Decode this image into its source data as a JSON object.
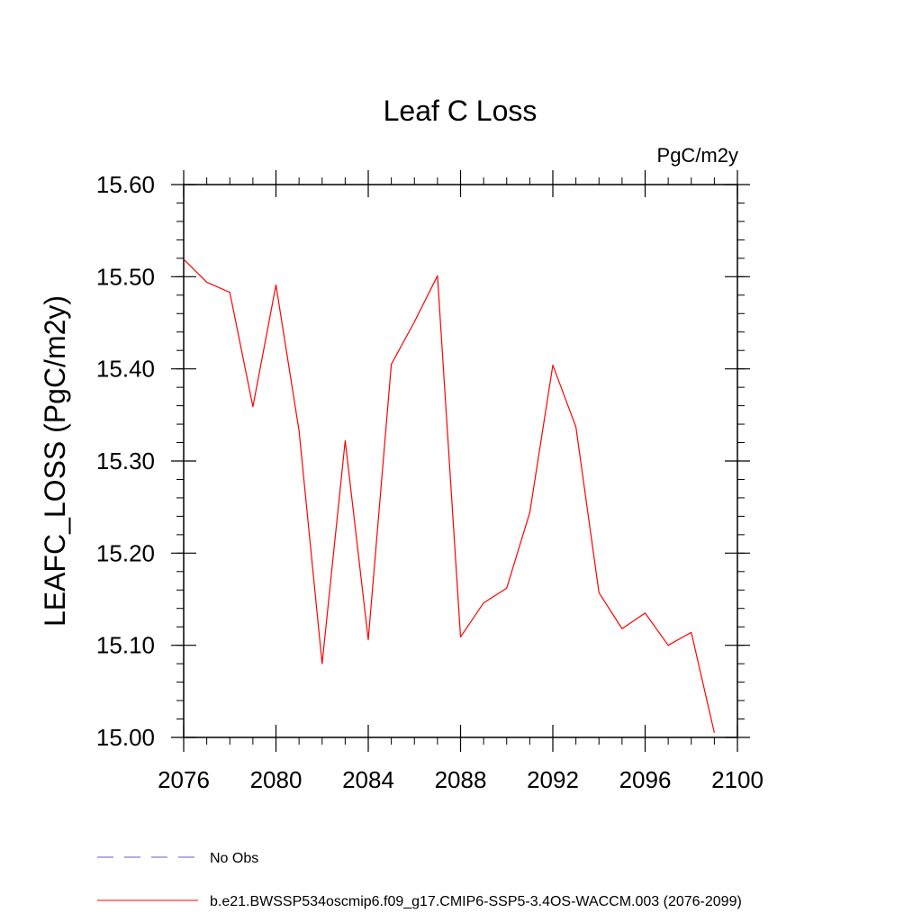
{
  "chart_data": {
    "type": "line",
    "title": "Leaf C Loss",
    "units_label": "PgC/m2y",
    "xlabel": "",
    "ylabel": "LEAFC_LOSS  (PgC/m2y)",
    "xlim": [
      2076,
      2100
    ],
    "ylim": [
      15.0,
      15.6
    ],
    "x_ticks": [
      2076,
      2080,
      2084,
      2088,
      2092,
      2096,
      2100
    ],
    "x_tick_labels": [
      "2076",
      "2080",
      "2084",
      "2088",
      "2092",
      "2096",
      "2100"
    ],
    "y_ticks": [
      15.0,
      15.1,
      15.2,
      15.3,
      15.4,
      15.5,
      15.6
    ],
    "y_tick_labels": [
      "15.00",
      "15.10",
      "15.20",
      "15.30",
      "15.40",
      "15.50",
      "15.60"
    ],
    "x_minor_step": 1,
    "y_minor_step": 0.02,
    "grid": false,
    "legend_position": "bottom",
    "series": [
      {
        "name": "b.e21.BWSSP534oscmip6.f09_g17.CMIP6-SSP5-3.4OS-WACCM.003 (2076-2099)",
        "color": "#ff0000",
        "style": "solid",
        "x": [
          2076,
          2077,
          2078,
          2079,
          2080,
          2081,
          2082,
          2083,
          2084,
          2085,
          2086,
          2087,
          2088,
          2089,
          2090,
          2091,
          2092,
          2093,
          2094,
          2095,
          2096,
          2097,
          2098,
          2099
        ],
        "values": [
          15.519,
          15.494,
          15.483,
          15.359,
          15.491,
          15.333,
          15.08,
          15.322,
          15.106,
          15.405,
          15.451,
          15.501,
          15.109,
          15.146,
          15.162,
          15.244,
          15.404,
          15.337,
          15.157,
          15.118,
          15.135,
          15.1,
          15.114,
          15.005
        ]
      }
    ],
    "legend": [
      {
        "label": "No Obs",
        "color": "#6a5acd",
        "style": "dashed"
      },
      {
        "label": "b.e21.BWSSP534oscmip6.f09_g17.CMIP6-SSP5-3.4OS-WACCM.003 (2076-2099)",
        "color": "#ff0000",
        "style": "solid"
      }
    ]
  }
}
